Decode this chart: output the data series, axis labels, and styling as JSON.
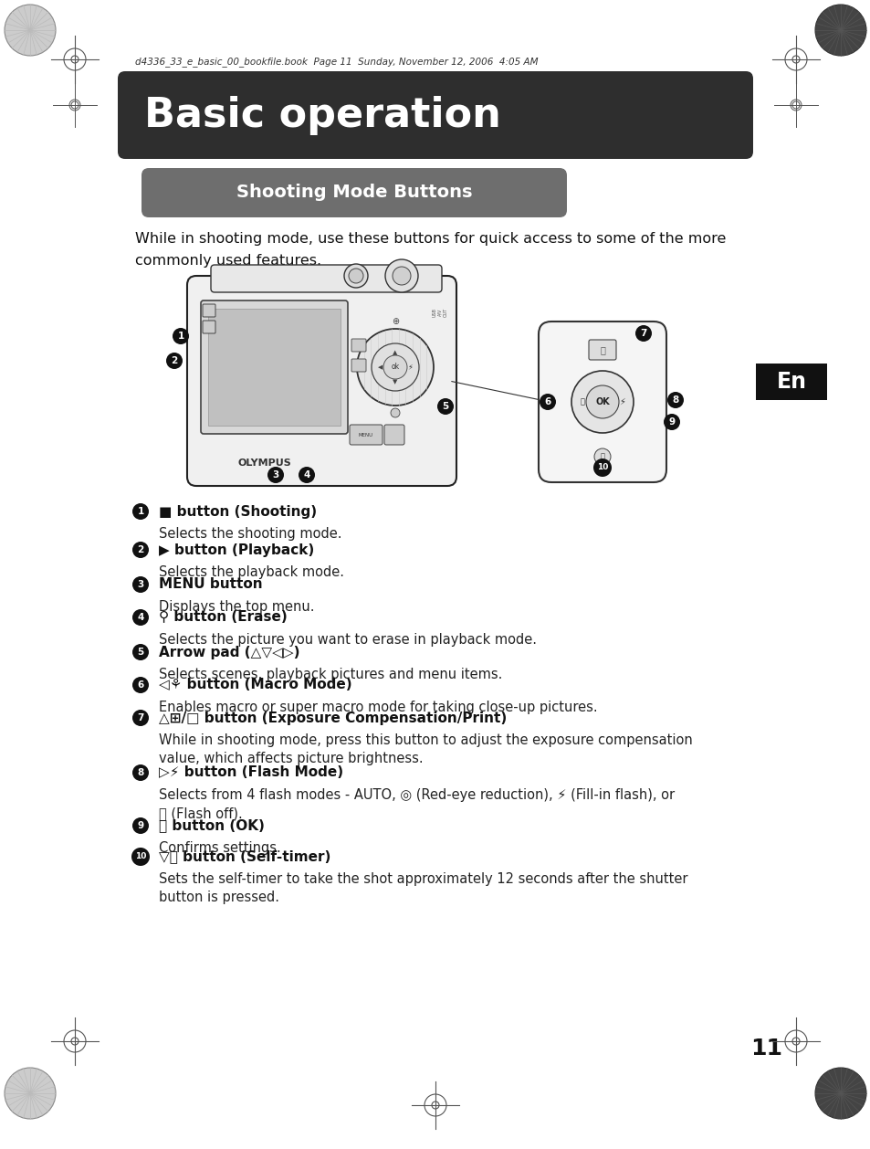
{
  "page_bg": "#ffffff",
  "header_text": "d4336_33_e_basic_00_bookfile.book  Page 11  Sunday, November 12, 2006  4:05 AM",
  "title_text": "Basic operation",
  "title_bg": "#2e2e2e",
  "title_text_color": "#ffffff",
  "section_text": "Shooting Mode Buttons",
  "section_bg": "#6e6e6e",
  "section_text_color": "#ffffff",
  "intro_line1": "While in shooting mode, use these buttons for quick access to some of the more",
  "intro_line2": "commonly used features.",
  "en_bg": "#111111",
  "en_text": "En",
  "en_text_color": "#ffffff",
  "page_num": "11",
  "items": [
    [
      "1",
      "■ button (Shooting)",
      "Selects the shooting mode.",
      false
    ],
    [
      "2",
      "▶ button (Playback)",
      "Selects the playback mode.",
      false
    ],
    [
      "3",
      "MENU button",
      "Displays the top menu.",
      false
    ],
    [
      "4",
      "⚲ button (Erase)",
      "Selects the picture you want to erase in playback mode.",
      false
    ],
    [
      "5",
      "Arrow pad (△▽◁▷)",
      "Selects scenes, playback pictures and menu items.",
      false
    ],
    [
      "6",
      "◁⚘ button (Macro Mode)",
      "Enables macro or super macro mode for taking close-up pictures.",
      false
    ],
    [
      "7",
      "△⊞/□ button (Exposure Compensation/Print)",
      "While in shooting mode, press this button to adjust the exposure compensation\nvalue, which affects picture brightness.",
      true
    ],
    [
      "8",
      "▷⚡ button (Flash Mode)",
      "Selects from 4 flash modes - AUTO, ◎ (Red-eye reduction), ⚡ (Fill-in flash), or\nⓧ (Flash off).",
      true
    ],
    [
      "9",
      "ⓞ button (OK)",
      "Confirms settings.",
      false
    ],
    [
      "10",
      "▽⌛ button (Self-timer)",
      "Sets the self-timer to take the shot approximately 12 seconds after the shutter\nbutton is pressed.",
      true
    ]
  ]
}
